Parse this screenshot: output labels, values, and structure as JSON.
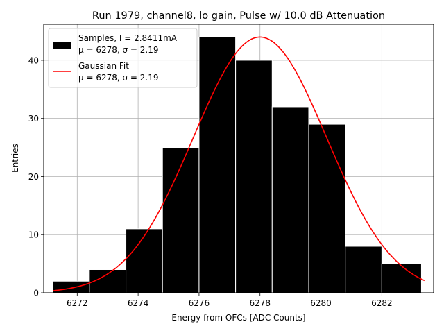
{
  "chart_data": {
    "type": "histogram",
    "title": "Run 1979, channel8, lo gain, Pulse w/ 10.0 dB Attenuation",
    "xlabel": "Energy from OFCs [ADC Counts]",
    "ylabel": "Entries",
    "xlim": [
      6270.9,
      6283.7
    ],
    "ylim": [
      0,
      46.2
    ],
    "xticks": [
      6272,
      6274,
      6276,
      6278,
      6280,
      6282
    ],
    "yticks": [
      0,
      10,
      20,
      30,
      40
    ],
    "grid": true,
    "bin_edges": [
      6271.2,
      6272.4,
      6273.6,
      6274.8,
      6276.0,
      6277.2,
      6278.4,
      6279.6,
      6280.8,
      6282.0,
      6283.3
    ],
    "counts": [
      2,
      4,
      11,
      25,
      44,
      40,
      32,
      29,
      8,
      5
    ],
    "fit": {
      "type": "gaussian",
      "amplitude": 44,
      "mu": 6278.0,
      "sigma": 2.19,
      "x_range": [
        6271.2,
        6283.4
      ]
    },
    "legend": {
      "position": "top-left",
      "entries": [
        {
          "label": "Samples, I = 2.8411mA",
          "label2": "μ = 6278, σ = 2.19",
          "color": "#000000",
          "kind": "patch"
        },
        {
          "label": "Gaussian Fit",
          "label2": "μ = 6278, σ = 2.19",
          "color": "#ff0000",
          "kind": "line"
        }
      ]
    }
  }
}
